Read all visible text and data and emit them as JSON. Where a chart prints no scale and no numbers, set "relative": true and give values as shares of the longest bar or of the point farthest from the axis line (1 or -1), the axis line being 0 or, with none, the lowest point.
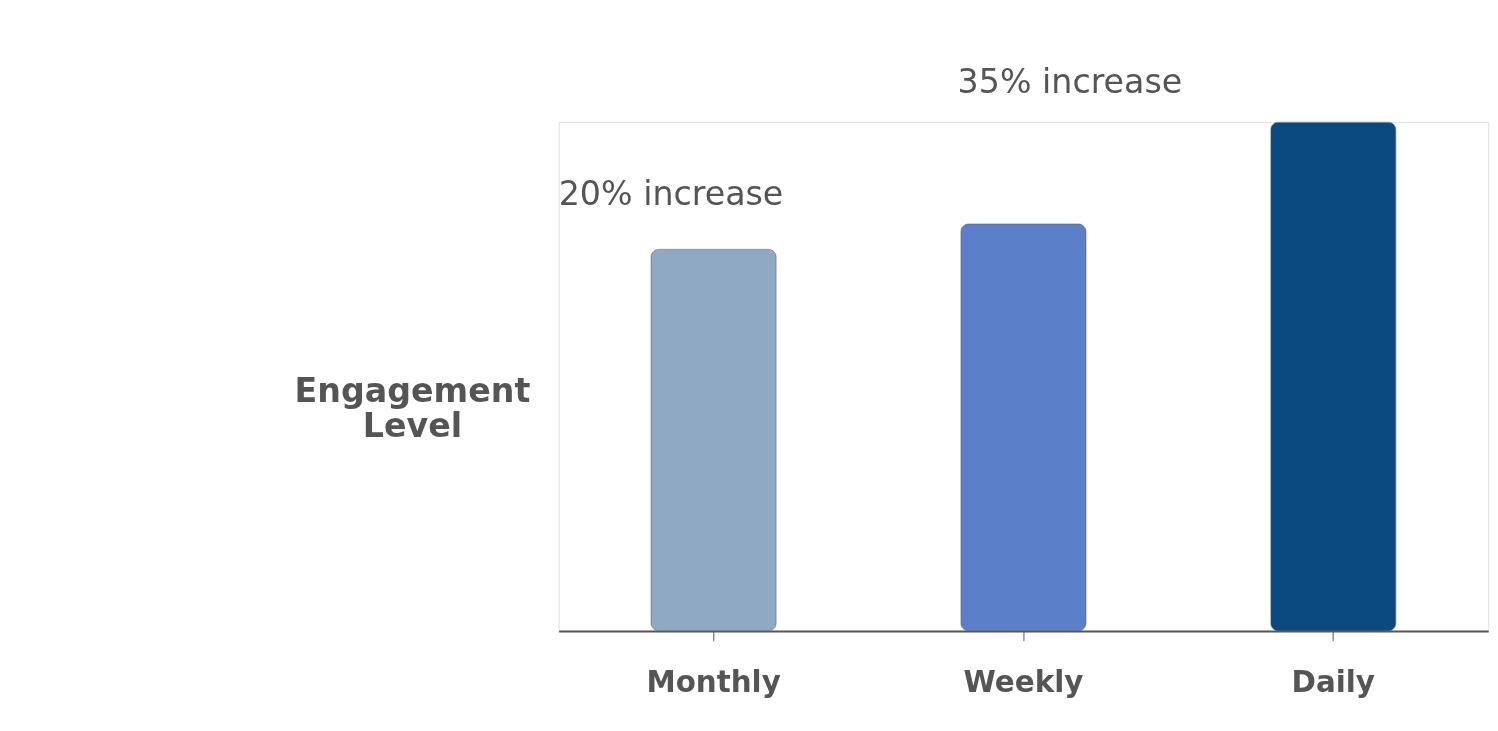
{
  "chart_data": {
    "type": "bar",
    "relative": true,
    "ylabel": "Engagement Level",
    "categories": [
      "Monthly",
      "Weekly",
      "Daily"
    ],
    "values": [
      0.75,
      0.8,
      1.0
    ],
    "colors": [
      "#8fa8c4",
      "#5b7fc8",
      "#0b4a80"
    ],
    "annotations": [
      "20% increase",
      "35% increase"
    ]
  }
}
